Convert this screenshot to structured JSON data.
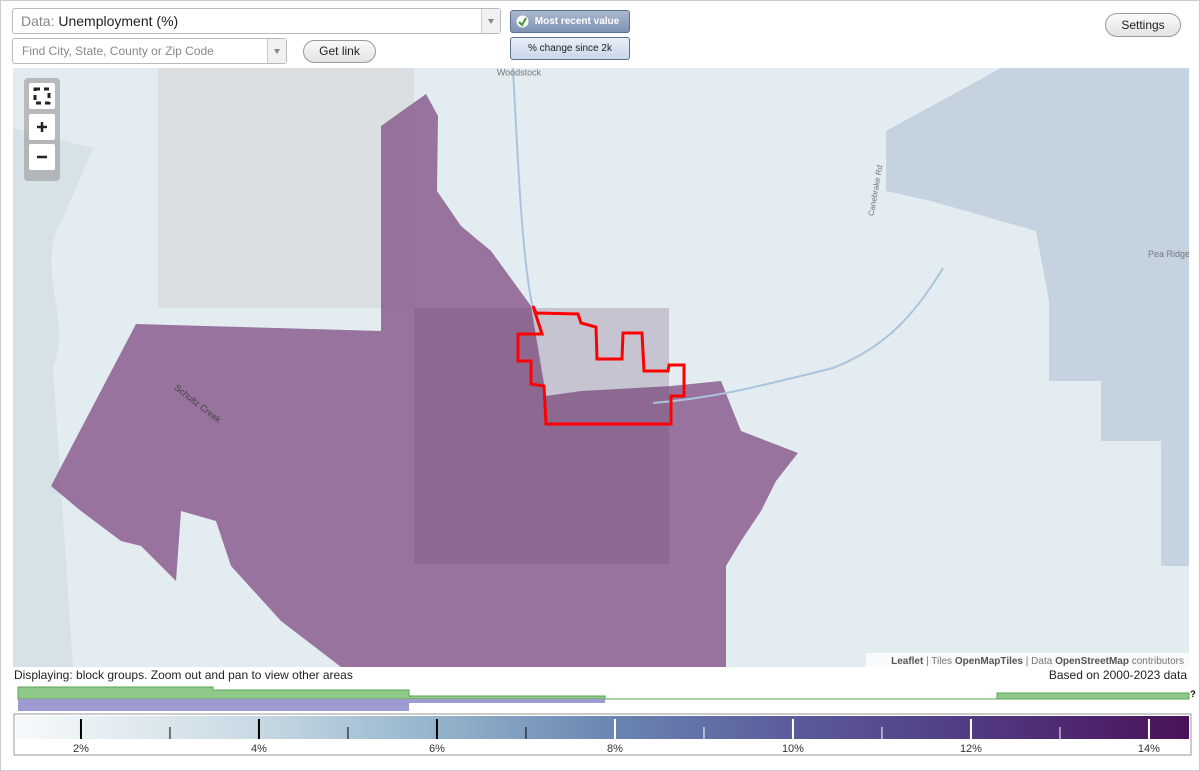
{
  "controls": {
    "data_label": "Data:",
    "data_value": "Unemployment (%)",
    "search_placeholder": "Find City, State, County or Zip Code",
    "get_link": "Get link",
    "most_recent": "Most recent value",
    "pct_change": "% change since 2k",
    "settings": "Settings"
  },
  "map": {
    "labels": [
      "Woodstock",
      "Schultz Creek",
      "Pea Ridge",
      "Canebrake Rd"
    ],
    "attribution": {
      "leaflet": "Leaflet",
      "tiles_prefix": "| Tiles",
      "tiles": "OpenMapTiles",
      "data_prefix": "| Data",
      "data": "OpenStreetMap",
      "suffix": "contributors"
    }
  },
  "status": {
    "displaying": "Displaying: block groups. Zoom out and pan to view other areas",
    "based_on": "Based on 2000-2023 data"
  },
  "legend": {
    "unknown": "?",
    "range": [
      1.27,
      14.45
    ],
    "ticks": [
      {
        "value": 2,
        "label": "2%"
      },
      {
        "value": 4,
        "label": "4%"
      },
      {
        "value": 6,
        "label": "6%"
      },
      {
        "value": 8,
        "label": "8%"
      },
      {
        "value": 10,
        "label": "10%"
      },
      {
        "value": 12,
        "label": "12%"
      },
      {
        "value": 14,
        "label": "14%"
      }
    ],
    "minor_ticks": [
      3,
      5,
      7,
      9,
      11,
      13
    ]
  }
}
